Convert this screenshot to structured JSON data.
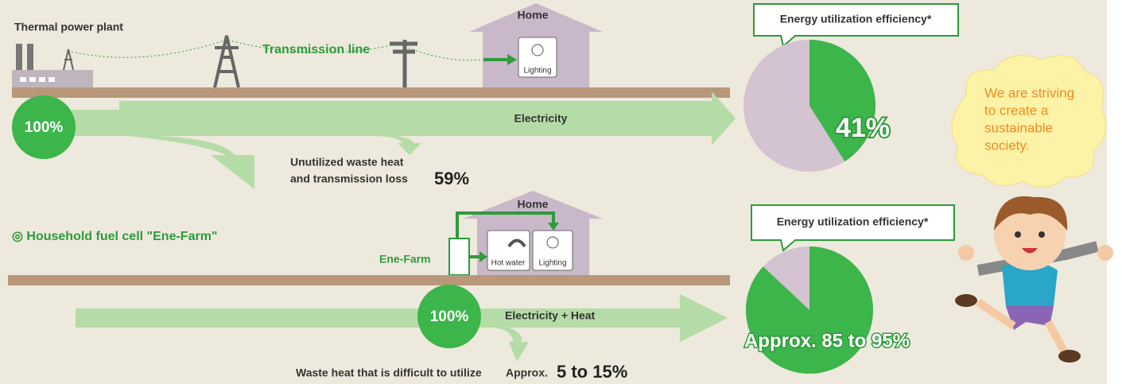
{
  "top": {
    "plant_label": "Thermal power plant",
    "line_label": "Transmission line",
    "home_label": "Home",
    "lighting_label": "Lighting",
    "source_percent": "100%",
    "flow_label": "Electricity",
    "loss_label_1": "Unutilized waste heat",
    "loss_label_2": "and transmission loss",
    "loss_percent": "59%",
    "efficiency_title": "Energy utilization efficiency*",
    "efficiency": {
      "value": 41,
      "label": "41%"
    }
  },
  "bottom": {
    "heading": "◎ Household fuel cell \"Ene-Farm\"",
    "home_label": "Home",
    "device_label": "Ene-Farm",
    "hot_water_label": "Hot water",
    "lighting_label": "Lighting",
    "source_percent": "100%",
    "flow_label": "Electricity + Heat",
    "loss_label": "Waste heat that is difficult to utilize",
    "loss_prefix": "Approx.",
    "loss_percent": "5 to 15%",
    "efficiency_title": "Energy utilization efficiency*",
    "efficiency": {
      "value": 87,
      "label": "Approx. 85 to 95%"
    }
  },
  "speech": [
    "We are striving",
    "to create a",
    "sustainable",
    "society."
  ]
}
